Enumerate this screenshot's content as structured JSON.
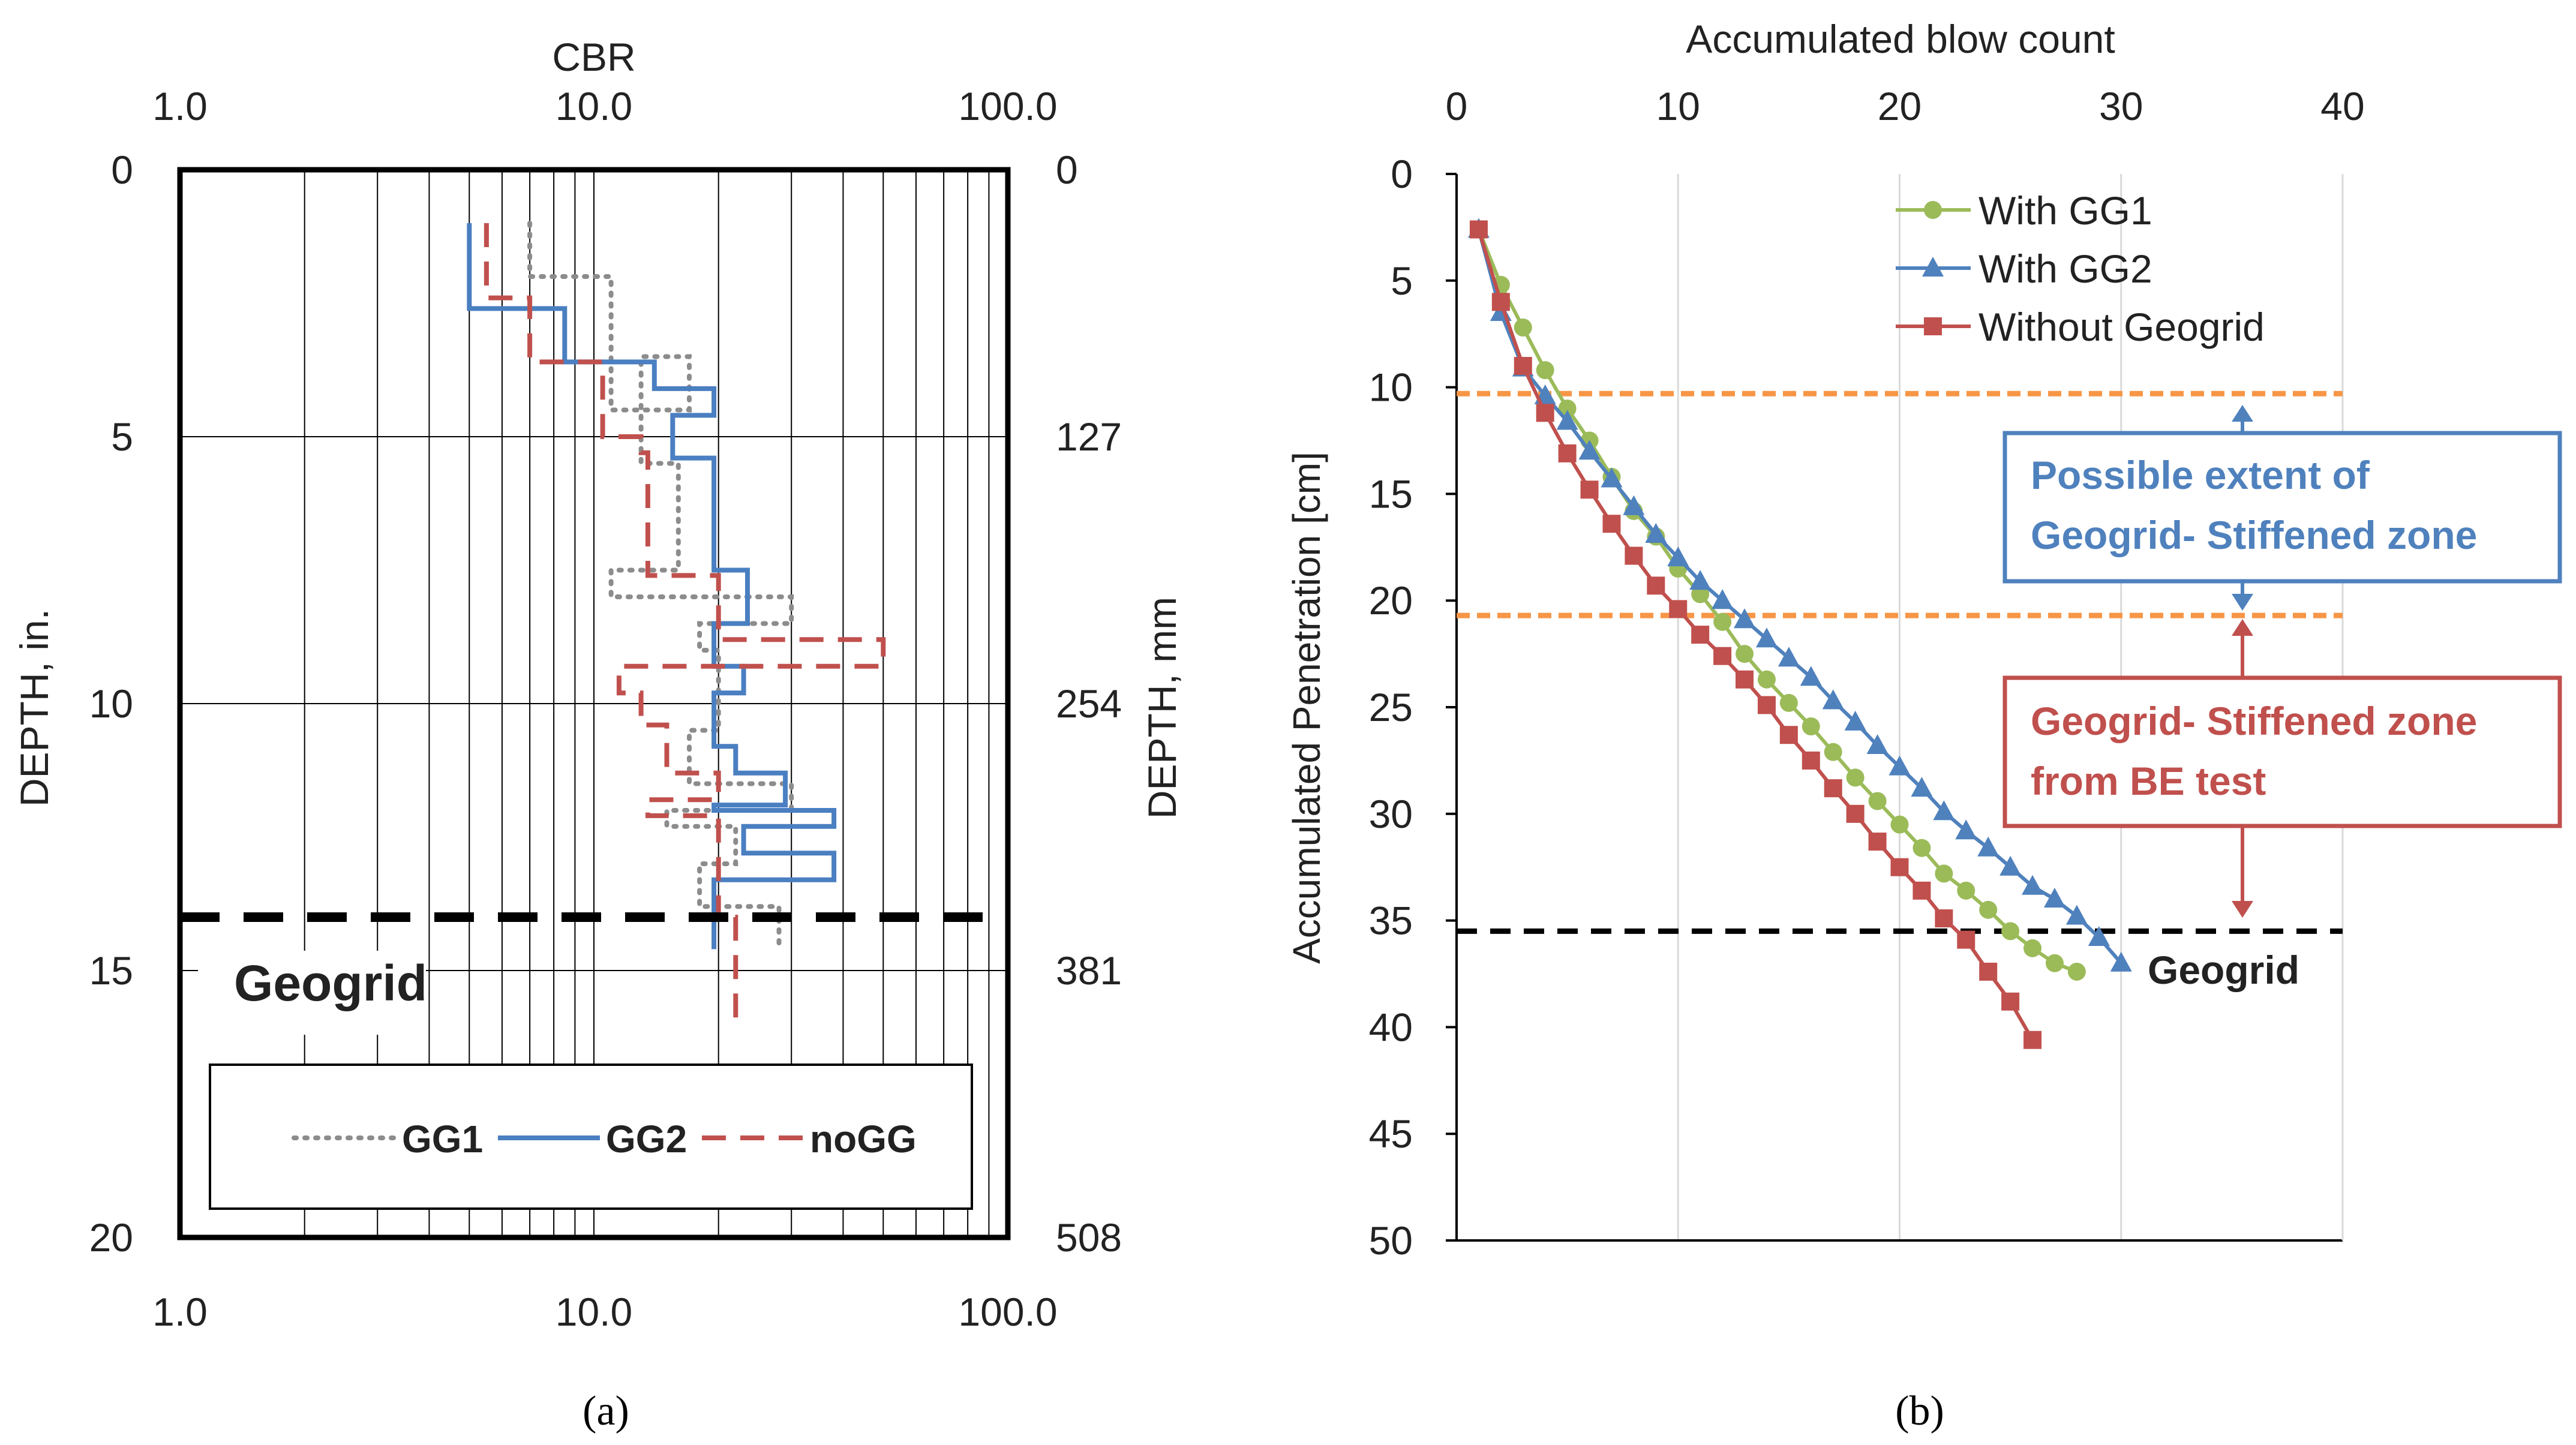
{
  "figure": {
    "caption_a": "(a)",
    "caption_b": "(b)"
  },
  "colors": {
    "GG1": "#8c8c8c",
    "GG2": "#4a7fc1",
    "noGG": "#c0504d",
    "withGG1": "#9bbb59",
    "withGG2": "#4f81bd",
    "without": "#c0504d",
    "orange": "#f79646",
    "blue_box": "#4f81bd",
    "red_box": "#c0504d"
  },
  "chart_data": [
    {
      "id": "a",
      "type": "line",
      "title": "",
      "xlabel": "CBR",
      "xscale": "log",
      "xlim": [
        1,
        100
      ],
      "x_ticks": [
        "1.0",
        "10.0",
        "100.0"
      ],
      "x_ticks_bottom": [
        "1.0",
        "10.0",
        "100.0"
      ],
      "ylabel": "DEPTH, in.",
      "ylim": [
        0,
        20
      ],
      "y_ticks": [
        "0",
        "5",
        "10",
        "15",
        "20"
      ],
      "y2label": "DEPTH, mm",
      "y2_ticks": [
        "0",
        "127",
        "254",
        "381",
        "508"
      ],
      "grid": true,
      "geogrid_depth": 14,
      "geogrid_label": "Geogrid",
      "legend": {
        "position": "bottom",
        "entries": [
          "GG1",
          "GG2",
          "noGG"
        ]
      },
      "series": [
        {
          "name": "GG1",
          "style": "dotted",
          "points": [
            [
              7,
              1
            ],
            [
              7,
              2
            ],
            [
              11,
              2
            ],
            [
              11,
              4.5
            ],
            [
              17,
              4.5
            ],
            [
              17,
              3.5
            ],
            [
              13,
              3.5
            ],
            [
              13,
              5.5
            ],
            [
              16,
              5.5
            ],
            [
              16,
              7.5
            ],
            [
              11,
              7.5
            ],
            [
              11,
              8
            ],
            [
              30,
              8
            ],
            [
              30,
              8.5
            ],
            [
              18,
              8.5
            ],
            [
              18,
              9
            ],
            [
              20,
              9
            ],
            [
              20,
              10.5
            ],
            [
              17,
              10.5
            ],
            [
              17,
              11.5
            ],
            [
              30,
              11.5
            ],
            [
              30,
              12
            ],
            [
              15,
              12
            ],
            [
              15,
              12.3
            ],
            [
              22,
              12.3
            ],
            [
              22,
              13
            ],
            [
              18,
              13
            ],
            [
              18,
              13.8
            ],
            [
              28,
              13.8
            ],
            [
              28,
              14.5
            ]
          ]
        },
        {
          "name": "GG2",
          "style": "solid",
          "points": [
            [
              5,
              1
            ],
            [
              5,
              2.6
            ],
            [
              8.5,
              2.6
            ],
            [
              8.5,
              3.6
            ],
            [
              14,
              3.6
            ],
            [
              14,
              4.1
            ],
            [
              19.5,
              4.1
            ],
            [
              19.5,
              4.6
            ],
            [
              15.5,
              4.6
            ],
            [
              15.5,
              5.4
            ],
            [
              19.5,
              5.4
            ],
            [
              19.5,
              7.5
            ],
            [
              23.5,
              7.5
            ],
            [
              23.5,
              8.5
            ],
            [
              19.5,
              8.5
            ],
            [
              19.5,
              9.3
            ],
            [
              23,
              9.3
            ],
            [
              23,
              9.8
            ],
            [
              19.5,
              9.8
            ],
            [
              19.5,
              10.8
            ],
            [
              22,
              10.8
            ],
            [
              22,
              11.3
            ],
            [
              29,
              11.3
            ],
            [
              29,
              11.9
            ],
            [
              19.5,
              11.9
            ],
            [
              19.5,
              12
            ],
            [
              38,
              12
            ],
            [
              38,
              12.3
            ],
            [
              23,
              12.3
            ],
            [
              23,
              12.8
            ],
            [
              38,
              12.8
            ],
            [
              38,
              13.3
            ],
            [
              19.5,
              13.3
            ],
            [
              19.5,
              14.6
            ]
          ]
        },
        {
          "name": "noGG",
          "style": "dashed",
          "points": [
            [
              5.5,
              1
            ],
            [
              5.5,
              2.4
            ],
            [
              7,
              2.4
            ],
            [
              7,
              3.6
            ],
            [
              10.5,
              3.6
            ],
            [
              10.5,
              5
            ],
            [
              13,
              5
            ],
            [
              13,
              5.3
            ],
            [
              13.5,
              5.3
            ],
            [
              13.5,
              7.6
            ],
            [
              20,
              7.6
            ],
            [
              20,
              8.8
            ],
            [
              50,
              8.8
            ],
            [
              50,
              9.3
            ],
            [
              11.5,
              9.3
            ],
            [
              11.5,
              9.8
            ],
            [
              13,
              9.8
            ],
            [
              13,
              10.4
            ],
            [
              15,
              10.4
            ],
            [
              15,
              11.3
            ],
            [
              20,
              11.3
            ],
            [
              20,
              11.8
            ],
            [
              13.5,
              11.8
            ],
            [
              13.5,
              12.1
            ],
            [
              20,
              12.1
            ],
            [
              20,
              14
            ],
            [
              22,
              14
            ],
            [
              22,
              16
            ]
          ]
        }
      ]
    },
    {
      "id": "b",
      "type": "line",
      "title": "",
      "xlabel": "Accumulated blow count",
      "xlim": [
        0,
        40
      ],
      "x_ticks": [
        "0",
        "10",
        "20",
        "30",
        "40"
      ],
      "ylabel": "Accumulated Penetration [cm]",
      "ylim": [
        0,
        50
      ],
      "y_ticks": [
        "0",
        "5",
        "10",
        "15",
        "20",
        "25",
        "30",
        "35",
        "40",
        "45",
        "50"
      ],
      "grid": true,
      "geogrid_depth": 35.5,
      "geogrid_label": "Geogrid",
      "orange_lines": [
        10.3,
        20.7
      ],
      "annotation_blue": [
        "Possible extent of",
        "Geogrid- Stiffened zone"
      ],
      "annotation_red": [
        "Geogrid- Stiffened zone",
        "from BE test"
      ],
      "legend": {
        "position": "top-right",
        "entries": [
          "With GG1",
          "With GG2",
          "Without Geogrid"
        ]
      },
      "series": [
        {
          "name": "With GG1",
          "marker": "circle",
          "x": [
            1,
            2,
            3,
            4,
            5,
            6,
            7,
            8,
            9,
            10,
            11,
            12,
            13,
            14,
            15,
            16,
            17,
            18,
            19,
            20,
            21,
            22,
            23,
            24,
            25,
            26,
            27,
            28
          ],
          "y": [
            2.6,
            5.2,
            7.2,
            9.2,
            11,
            12.5,
            14.2,
            15.8,
            17,
            18.5,
            19.7,
            21,
            22.5,
            23.7,
            24.8,
            25.9,
            27.1,
            28.3,
            29.4,
            30.5,
            31.6,
            32.8,
            33.6,
            34.5,
            35.5,
            36.3,
            37,
            37.4
          ]
        },
        {
          "name": "With GG2",
          "marker": "triangle",
          "x": [
            1,
            2,
            3,
            4,
            5,
            6,
            7,
            8,
            9,
            10,
            11,
            12,
            13,
            14,
            15,
            16,
            17,
            18,
            19,
            20,
            21,
            22,
            23,
            24,
            25,
            26,
            27,
            28,
            29,
            30
          ],
          "y": [
            2.6,
            6.5,
            9.1,
            10.4,
            11.6,
            13,
            14.3,
            15.6,
            16.9,
            18,
            19.1,
            20,
            20.9,
            21.8,
            22.7,
            23.6,
            24.7,
            25.7,
            26.8,
            27.8,
            28.8,
            29.9,
            30.8,
            31.6,
            32.5,
            33.4,
            34,
            34.8,
            35.8,
            37
          ]
        },
        {
          "name": "Without Geogrid",
          "marker": "square",
          "x": [
            1,
            2,
            3,
            4,
            5,
            6,
            7,
            8,
            9,
            10,
            11,
            12,
            13,
            14,
            15,
            16,
            17,
            18,
            19,
            20,
            21,
            22,
            23,
            24,
            25,
            26
          ],
          "y": [
            2.6,
            6,
            9,
            11.2,
            13.1,
            14.8,
            16.4,
            17.9,
            19.3,
            20.4,
            21.6,
            22.6,
            23.7,
            24.9,
            26.3,
            27.5,
            28.8,
            30,
            31.3,
            32.5,
            33.6,
            34.9,
            35.9,
            37.4,
            38.8,
            40.6
          ]
        }
      ]
    }
  ]
}
